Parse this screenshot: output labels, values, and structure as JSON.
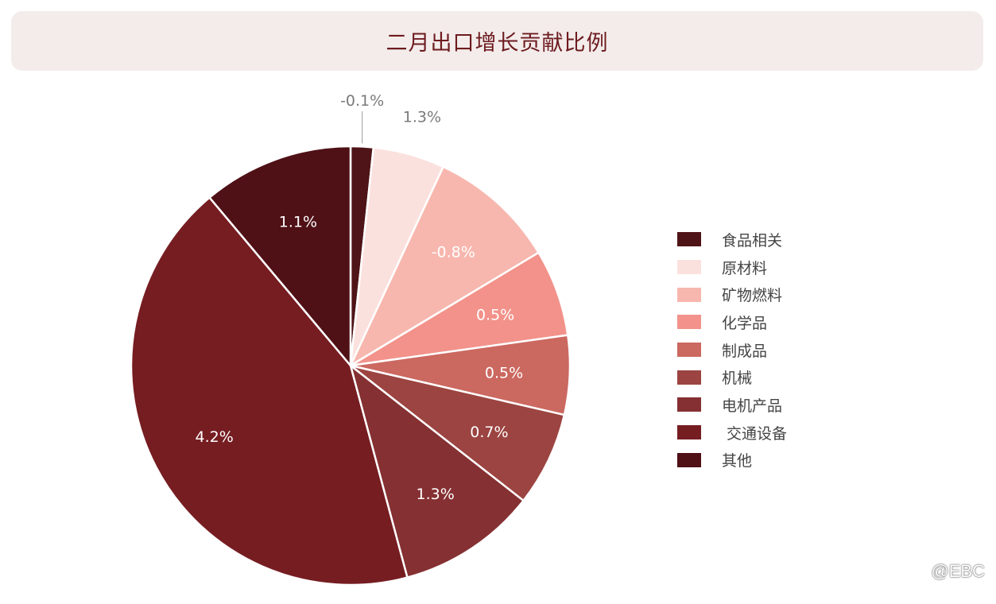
{
  "title": "二月出口增长贡献比例",
  "watermark": "@EBC",
  "colors": {
    "title_bg": "#f3eceb",
    "title_text": "#6e1b1f",
    "outside_label": "#7a7a7a",
    "inside_label": "#ffffff"
  },
  "chart_data": {
    "type": "pie",
    "title": "二月出口增长贡献比例",
    "legend_position": "right",
    "start_angle_deg": 0,
    "direction": "clockwise",
    "slices": [
      {
        "name": "食品相关",
        "label": "-0.1%",
        "share_deg": 6,
        "color": "#4f1417",
        "label_outside": true
      },
      {
        "name": "原材料",
        "label": "1.3%",
        "share_deg": 19,
        "color": "#fbe1de",
        "label_outside": true
      },
      {
        "name": "矿物燃料",
        "label": "-0.8%",
        "share_deg": 34,
        "color": "#f7b7ae",
        "label_outside": false
      },
      {
        "name": "化学品",
        "label": "0.5%",
        "share_deg": 23,
        "color": "#f2928a",
        "label_outside": false
      },
      {
        "name": "制成品",
        "label": "0.5%",
        "share_deg": 21,
        "color": "#cb6860",
        "label_outside": false
      },
      {
        "name": "机械",
        "label": "0.7%",
        "share_deg": 25,
        "color": "#9c4441",
        "label_outside": false
      },
      {
        "name": "电机产品",
        "label": "1.3%",
        "share_deg": 37,
        "color": "#853032",
        "label_outside": false
      },
      {
        "name": "交通设备",
        "label": "4.2%",
        "share_deg": 155,
        "color": "#761d22",
        "label_outside": false
      },
      {
        "name": "其他",
        "label": "1.1%",
        "share_deg": 40,
        "color": "#4f1016",
        "label_outside": false
      }
    ]
  },
  "legend": [
    {
      "label": "食品相关",
      "color": "#4f1417"
    },
    {
      "label": "原材料",
      "color": "#fbe1de"
    },
    {
      "label": "矿物燃料",
      "color": "#f7b7ae"
    },
    {
      "label": "化学品",
      "color": "#f2928a"
    },
    {
      "label": "制成品",
      "color": "#cb6860"
    },
    {
      "label": "机械",
      "color": "#9c4441"
    },
    {
      "label": "电机产品",
      "color": "#853032"
    },
    {
      "label": " 交通设备",
      "color": "#761d22"
    },
    {
      "label": "其他",
      "color": "#4f1016"
    }
  ]
}
